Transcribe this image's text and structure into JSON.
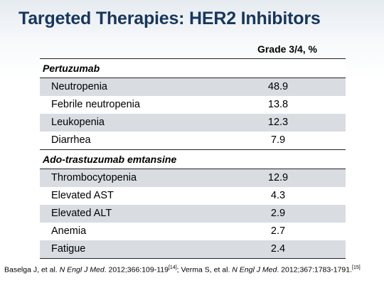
{
  "slide": {
    "title": "Targeted Therapies: HER2 Inhibitors"
  },
  "table": {
    "column_header": "Grade 3/4, %",
    "sections": [
      {
        "name": "Pertuzumab",
        "rows": [
          {
            "label": "Neutropenia",
            "value": "48.9"
          },
          {
            "label": "Febrile neutropenia",
            "value": "13.8"
          },
          {
            "label": "Leukopenia",
            "value": "12.3"
          },
          {
            "label": "Diarrhea",
            "value": "7.9"
          }
        ]
      },
      {
        "name": "Ado-trastuzumab emtansine",
        "rows": [
          {
            "label": "Thrombocytopenia",
            "value": "12.9"
          },
          {
            "label": "Elevated AST",
            "value": "4.3"
          },
          {
            "label": "Elevated ALT",
            "value": "2.9"
          },
          {
            "label": "Anemia",
            "value": "2.7"
          },
          {
            "label": "Fatigue",
            "value": "2.4"
          }
        ]
      }
    ]
  },
  "footnote": {
    "ref1_author": "Baselga J, et al. ",
    "ref1_journal": "N Engl J Med",
    "ref1_detail": ". 2012;366:109-119",
    "ref1_sup": "[14]",
    "ref2_author": "; Verma S, et al. ",
    "ref2_journal": "N Engl J Med",
    "ref2_detail": ". 2012;367:1783-1791.",
    "ref2_sup": "[15]"
  },
  "colors": {
    "title": "#17365d",
    "row_shade": "#d9dde2"
  }
}
